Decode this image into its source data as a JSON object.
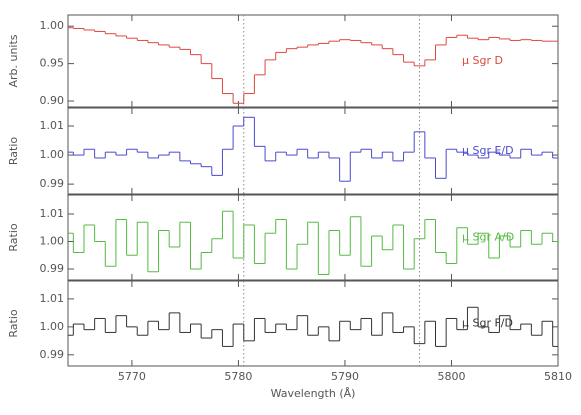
{
  "chart_data": [
    {
      "type": "step",
      "ylabel": "Arb. units",
      "label": "μ Sgr D",
      "color": "#e0473f",
      "x": [
        5764,
        5765,
        5766,
        5767,
        5768,
        5769,
        5770,
        5771,
        5772,
        5773,
        5774,
        5775,
        5776,
        5777,
        5778,
        5779,
        5780,
        5781,
        5782,
        5783,
        5784,
        5785,
        5786,
        5787,
        5788,
        5789,
        5790,
        5791,
        5792,
        5793,
        5794,
        5795,
        5796,
        5797,
        5798,
        5799,
        5800,
        5801,
        5802,
        5803,
        5804,
        5805,
        5806,
        5807,
        5808,
        5809,
        5810
      ],
      "values": [
        0.998,
        0.997,
        0.995,
        0.993,
        0.99,
        0.987,
        0.984,
        0.981,
        0.978,
        0.975,
        0.972,
        0.969,
        0.962,
        0.95,
        0.93,
        0.91,
        0.897,
        0.91,
        0.935,
        0.955,
        0.965,
        0.97,
        0.972,
        0.975,
        0.977,
        0.98,
        0.982,
        0.981,
        0.978,
        0.975,
        0.97,
        0.962,
        0.952,
        0.947,
        0.955,
        0.975,
        0.985,
        0.988,
        0.984,
        0.982,
        0.985,
        0.983,
        0.981,
        0.982,
        0.981,
        0.98,
        0.98
      ],
      "xlim": [
        5764,
        5810
      ],
      "xticks": [
        5770,
        5780,
        5790,
        5800,
        5810
      ],
      "ylim": [
        0.892,
        1.015
      ],
      "yticks": [
        {
          "value": 0.9,
          "label": "0.90"
        },
        {
          "value": 0.95,
          "label": "0.95"
        },
        {
          "value": 1.0,
          "label": "1.00"
        }
      ],
      "vlines": [
        5780.5,
        5797
      ]
    },
    {
      "type": "step",
      "ylabel": "Ratio",
      "label": "μ Sgr E/D",
      "color": "#4a4ad0",
      "x": [
        5764,
        5765,
        5766,
        5767,
        5768,
        5769,
        5770,
        5771,
        5772,
        5773,
        5774,
        5775,
        5776,
        5777,
        5778,
        5779,
        5780,
        5781,
        5782,
        5783,
        5784,
        5785,
        5786,
        5787,
        5788,
        5789,
        5790,
        5791,
        5792,
        5793,
        5794,
        5795,
        5796,
        5797,
        5798,
        5799,
        5800,
        5801,
        5802,
        5803,
        5804,
        5805,
        5806,
        5807,
        5808,
        5809,
        5810
      ],
      "values": [
        1.001,
        1.0,
        1.002,
        0.999,
        1.001,
        1.0,
        1.002,
        1.001,
        0.999,
        1.0,
        1.001,
        0.998,
        0.997,
        0.996,
        0.993,
        1.002,
        1.01,
        1.013,
        1.003,
        0.998,
        1.001,
        1.0,
        1.002,
        0.999,
        1.001,
        0.999,
        0.991,
        1.001,
        1.002,
        0.999,
        1.001,
        0.998,
        1.001,
        1.008,
        0.999,
        0.992,
        1.002,
        1.001,
        1.0,
        0.999,
        1.001,
        1.0,
        0.999,
        1.002,
        1.0,
        1.001,
        0.999
      ],
      "xlim": [
        5764,
        5810
      ],
      "xticks": [
        5770,
        5780,
        5790,
        5800,
        5810
      ],
      "ylim": [
        0.9866,
        1.0162
      ],
      "yticks": [
        {
          "value": 0.99,
          "label": "0.99"
        },
        {
          "value": 1.0,
          "label": "1.00"
        },
        {
          "value": 1.01,
          "label": "1.01"
        }
      ],
      "vlines": [
        5780.5,
        5797
      ]
    },
    {
      "type": "step",
      "ylabel": "Ratio",
      "label": "μ Sgr A/D",
      "color": "#55bb44",
      "x": [
        5764,
        5765,
        5766,
        5767,
        5768,
        5769,
        5770,
        5771,
        5772,
        5773,
        5774,
        5775,
        5776,
        5777,
        5778,
        5779,
        5780,
        5781,
        5782,
        5783,
        5784,
        5785,
        5786,
        5787,
        5788,
        5789,
        5790,
        5791,
        5792,
        5793,
        5794,
        5795,
        5796,
        5797,
        5798,
        5799,
        5800,
        5801,
        5802,
        5803,
        5804,
        5805,
        5806,
        5807,
        5808,
        5809,
        5810
      ],
      "values": [
        1.003,
        0.996,
        1.006,
        1.0,
        0.991,
        1.008,
        0.995,
        1.007,
        0.989,
        1.004,
        0.998,
        1.007,
        0.99,
        0.996,
        1.001,
        1.011,
        0.994,
        1.006,
        0.992,
        1.003,
        1.008,
        0.99,
        0.999,
        1.007,
        0.988,
        1.004,
        0.995,
        1.009,
        0.991,
        1.002,
        0.997,
        1.006,
        0.99,
        1.001,
        1.008,
        0.996,
        0.992,
        1.005,
        0.999,
        1.003,
        0.994,
        1.002,
        0.998,
        1.004,
        0.999,
        1.003,
        1.0
      ],
      "xlim": [
        5764,
        5810
      ],
      "xticks": [
        5770,
        5780,
        5790,
        5800,
        5810
      ],
      "ylim": [
        0.986,
        1.0169
      ],
      "yticks": [
        {
          "value": 0.99,
          "label": "0.99"
        },
        {
          "value": 1.0,
          "label": "1.00"
        },
        {
          "value": 1.01,
          "label": "1.01"
        }
      ],
      "vlines": [
        5780.5,
        5797
      ]
    },
    {
      "type": "step",
      "ylabel": "Ratio",
      "label": "μ Sgr F/D",
      "color": "#333333",
      "xlabel": "Wavelength (Å)",
      "x": [
        5764,
        5765,
        5766,
        5767,
        5768,
        5769,
        5770,
        5771,
        5772,
        5773,
        5774,
        5775,
        5776,
        5777,
        5778,
        5779,
        5780,
        5781,
        5782,
        5783,
        5784,
        5785,
        5786,
        5787,
        5788,
        5789,
        5790,
        5791,
        5792,
        5793,
        5794,
        5795,
        5796,
        5797,
        5798,
        5799,
        5800,
        5801,
        5802,
        5803,
        5804,
        5805,
        5806,
        5807,
        5808,
        5809,
        5810
      ],
      "values": [
        0.997,
        1.001,
        0.999,
        1.003,
        0.998,
        1.004,
        1.0,
        0.997,
        1.002,
        0.999,
        1.005,
        0.998,
        1.001,
        0.996,
        0.999,
        0.993,
        1.001,
        0.995,
        1.003,
        0.998,
        1.001,
        0.999,
        1.004,
        0.997,
        1.0,
        0.995,
        1.002,
        0.999,
        1.003,
        0.997,
        1.005,
        0.998,
        1.0,
        0.994,
        1.002,
        0.993,
        1.003,
        0.999,
        1.007,
        1.0,
        0.998,
        1.004,
        0.999,
        1.001,
        0.997,
        1.002,
        0.993
      ],
      "xlim": [
        5764,
        5810
      ],
      "xticks": [
        5770,
        5780,
        5790,
        5800,
        5810
      ],
      "ylim": [
        0.986,
        1.0164
      ],
      "yticks": [
        {
          "value": 0.99,
          "label": "0.99"
        },
        {
          "value": 1.0,
          "label": "1.00"
        },
        {
          "value": 1.01,
          "label": "1.01"
        }
      ],
      "vlines": [
        5780.5,
        5797
      ]
    }
  ]
}
